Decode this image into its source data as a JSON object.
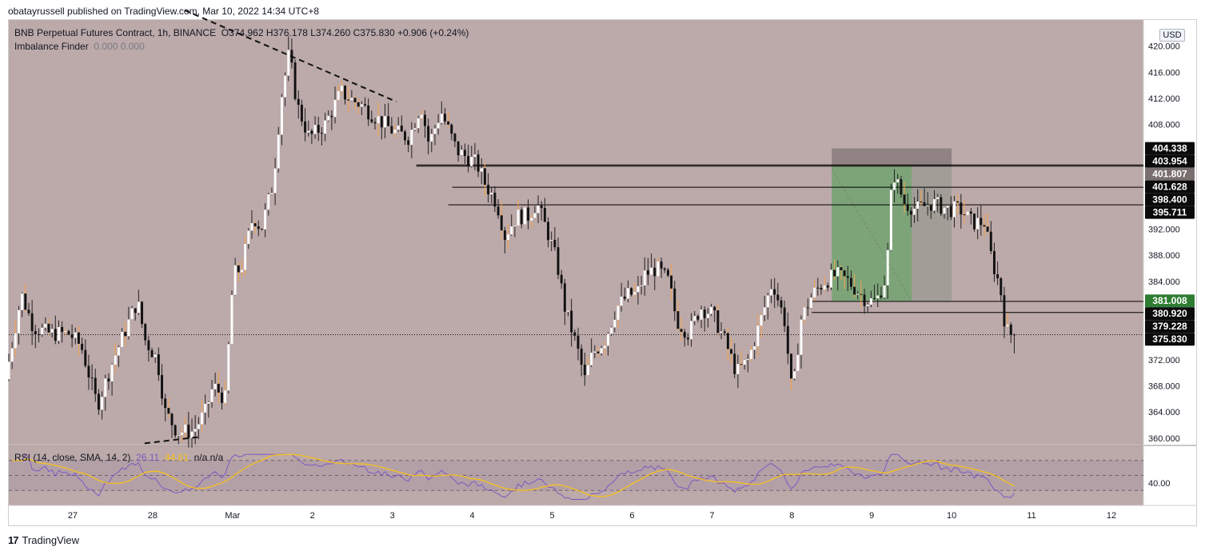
{
  "credit": "obatayrussell published on TradingView.com, Mar 10, 2022 14:34 UTC+8",
  "legend": {
    "symbol": "BNB Perpetual Futures Contract, 1h, BINANCE",
    "ohlc": "O374.962  H376.178  L374.260  C375.830  +0.906 (+0.24%)",
    "indicator_name": "Imbalance Finder",
    "indicator_values": "0.000  0.000"
  },
  "currency": "USD",
  "rsi_legend": {
    "name": "RSI (14, close, SMA, 14, 2)",
    "rsi_value": "26.11",
    "sma_value": "44.61",
    "extra": "n/a  n/a"
  },
  "footer": {
    "logo": "17",
    "brand": "TradingView"
  },
  "colors": {
    "background": "#bca9a9",
    "up": "#ffffff",
    "down": "#111111",
    "wick_orange": "#f5a34a",
    "target_zone": "#7ba477",
    "stop_zone": "#8c7e7e",
    "rsi_line": "#7e57c2",
    "rsi_sma": "#f5c11d"
  },
  "chart_data": {
    "type": "candlestick",
    "symbol": "BNB Perpetual Futures Contract",
    "interval": "1h",
    "ylim": [
      359,
      424
    ],
    "y_ticks": [
      360,
      364,
      368,
      372,
      376,
      380,
      384,
      388,
      392,
      396,
      400,
      404,
      408,
      412,
      416,
      420,
      424
    ],
    "x_labels": [
      "27",
      "28",
      "Mar",
      "2",
      "3",
      "4",
      "5",
      "6",
      "7",
      "8",
      "9",
      "10",
      "11",
      "12"
    ],
    "x_label_days": [
      0,
      1,
      2,
      3,
      4,
      5,
      6,
      7,
      8,
      9,
      10,
      11,
      12,
      13
    ],
    "xlim_days": [
      -0.8,
      13.4
    ],
    "last_price": 375.83,
    "price_labels": [
      {
        "value": "404.338",
        "price": 404.338,
        "style": "black"
      },
      {
        "value": "403.954",
        "price": 403.954,
        "style": "black"
      },
      {
        "value": "401.807",
        "price": 401.807,
        "style": "grey"
      },
      {
        "value": "401.628",
        "price": 401.628,
        "style": "black"
      },
      {
        "value": "398.400",
        "price": 398.4,
        "style": "black"
      },
      {
        "value": "395.711",
        "price": 395.711,
        "style": "black"
      },
      {
        "value": "381.008",
        "price": 381.008,
        "style": "green"
      },
      {
        "value": "380.920",
        "price": 380.92,
        "style": "black"
      },
      {
        "value": "379.228",
        "price": 379.228,
        "style": "black"
      },
      {
        "value": "375.830",
        "price": 375.83,
        "style": "black"
      }
    ],
    "horizontal_levels": [
      {
        "price": 401.807,
        "from_day": 4.3
      },
      {
        "price": 401.628,
        "from_day": 4.3
      },
      {
        "price": 398.4,
        "from_day": 4.75
      },
      {
        "price": 395.711,
        "from_day": 4.7
      },
      {
        "price": 380.92,
        "from_day": 9.25
      },
      {
        "price": 379.228,
        "from_day": 9.25
      }
    ],
    "position_box": {
      "from_day": 9.5,
      "to_day": 11.0,
      "current_day": 10.5,
      "entry": 381.008,
      "target": 401.628,
      "stop": 404.338
    },
    "trendlines": [
      {
        "from": [
          1.4,
          425.5
        ],
        "to": [
          4.05,
          411.5
        ]
      },
      {
        "from": [
          0.9,
          359.2
        ],
        "to": [
          1.6,
          360.2
        ]
      }
    ],
    "anchors": [
      [
        -0.8,
        369
      ],
      [
        -0.6,
        382
      ],
      [
        -0.45,
        377
      ],
      [
        -0.25,
        376
      ],
      [
        0.0,
        376
      ],
      [
        0.15,
        374
      ],
      [
        0.35,
        365
      ],
      [
        0.55,
        372
      ],
      [
        0.75,
        378
      ],
      [
        0.85,
        381
      ],
      [
        0.95,
        375
      ],
      [
        1.1,
        372
      ],
      [
        1.2,
        364
      ],
      [
        1.35,
        361
      ],
      [
        1.55,
        361
      ],
      [
        1.7,
        364
      ],
      [
        1.8,
        368
      ],
      [
        1.95,
        366
      ],
      [
        2.05,
        385
      ],
      [
        2.15,
        386
      ],
      [
        2.3,
        394
      ],
      [
        2.4,
        392
      ],
      [
        2.55,
        399
      ],
      [
        2.65,
        412
      ],
      [
        2.75,
        419
      ],
      [
        2.85,
        411
      ],
      [
        3.0,
        406
      ],
      [
        3.2,
        408
      ],
      [
        3.4,
        413
      ],
      [
        3.5,
        412
      ],
      [
        3.65,
        411
      ],
      [
        3.85,
        409
      ],
      [
        4.05,
        407
      ],
      [
        4.25,
        406
      ],
      [
        4.4,
        411
      ],
      [
        4.5,
        405
      ],
      [
        4.65,
        410
      ],
      [
        4.85,
        404
      ],
      [
        5.1,
        402
      ],
      [
        5.2,
        399
      ],
      [
        5.35,
        396
      ],
      [
        5.45,
        391
      ],
      [
        5.6,
        394
      ],
      [
        5.75,
        394
      ],
      [
        5.85,
        396
      ],
      [
        6.0,
        391
      ],
      [
        6.1,
        387
      ],
      [
        6.2,
        380
      ],
      [
        6.35,
        374
      ],
      [
        6.45,
        369
      ],
      [
        6.55,
        373
      ],
      [
        6.7,
        375
      ],
      [
        6.85,
        380
      ],
      [
        7.0,
        382
      ],
      [
        7.1,
        382
      ],
      [
        7.2,
        385
      ],
      [
        7.35,
        386
      ],
      [
        7.5,
        384
      ],
      [
        7.6,
        378
      ],
      [
        7.75,
        376
      ],
      [
        7.9,
        380
      ],
      [
        8.05,
        379
      ],
      [
        8.2,
        375
      ],
      [
        8.35,
        370
      ],
      [
        8.5,
        372
      ],
      [
        8.65,
        378
      ],
      [
        8.8,
        384
      ],
      [
        8.95,
        378
      ],
      [
        9.05,
        366
      ],
      [
        9.15,
        378
      ],
      [
        9.3,
        382
      ],
      [
        9.45,
        384
      ],
      [
        9.6,
        385
      ],
      [
        9.75,
        384
      ],
      [
        9.9,
        382
      ],
      [
        10.0,
        381
      ],
      [
        10.1,
        381
      ],
      [
        10.2,
        384
      ],
      [
        10.25,
        389
      ],
      [
        10.3,
        401
      ],
      [
        10.45,
        396
      ],
      [
        10.6,
        395
      ],
      [
        10.8,
        396
      ],
      [
        11.0,
        395
      ],
      [
        11.15,
        395
      ],
      [
        11.3,
        393
      ],
      [
        11.45,
        393
      ],
      [
        11.55,
        387
      ],
      [
        11.65,
        383
      ],
      [
        11.72,
        376.5
      ],
      [
        11.8,
        375.8
      ]
    ],
    "rsi": {
      "period": 14,
      "smoothing": "SMA 14",
      "upper_band": 70,
      "middle_band": 50,
      "lower_band": 30,
      "tick_label": "40.00",
      "last_rsi": 26.11,
      "last_sma": 44.61,
      "rsi_ylim": [
        10,
        90
      ]
    }
  }
}
